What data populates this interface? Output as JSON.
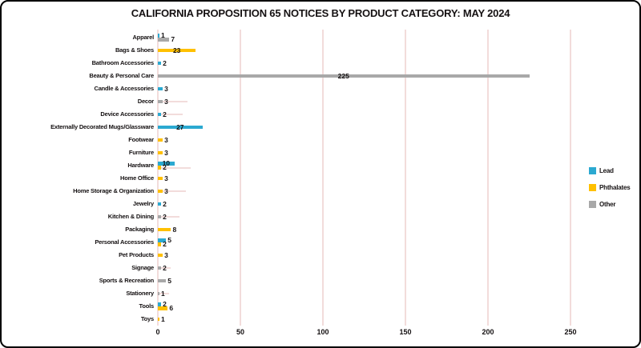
{
  "title": "CALIFORNIA PROPOSITION 65 NOTICES BY PRODUCT CATEGORY: MAY 2024",
  "colors": {
    "lead": "#2BA9D1",
    "phthalates": "#FFC000",
    "other": "#A8A8A8",
    "gridline": "#F2DCDB",
    "marker_line": "#F2DCDB",
    "text": "#151112",
    "background": "#FFFFFF",
    "frame_border": "#000000"
  },
  "legend": {
    "position": "right",
    "items": [
      {
        "key": "lead",
        "label": "Lead"
      },
      {
        "key": "phthalates",
        "label": "Phthalates"
      },
      {
        "key": "other",
        "label": "Other"
      }
    ]
  },
  "chart_data": {
    "type": "bar",
    "orientation": "horizontal",
    "title": "CALIFORNIA PROPOSITION 65 NOTICES BY PRODUCT CATEGORY: MAY 2024",
    "xlabel": "",
    "ylabel": "",
    "xlim": [
      0,
      250
    ],
    "xticks": [
      0,
      50,
      100,
      150,
      200,
      250
    ],
    "grid": true,
    "categories": [
      "Apparel",
      "Bags & Shoes",
      "Bathroom Accessories",
      "Beauty & Personal Care",
      "Candle & Accessories",
      "Decor",
      "Device Accessories",
      "Externally Decorated Mugs/Glassware",
      "Footwear",
      "Furniture",
      "Hardware",
      "Home Office",
      "Home Storage & Organization",
      "Jewelry",
      "Kitchen & Dining",
      "Packaging",
      "Personal Accessories",
      "Pet Products",
      "Signage",
      "Sports & Recreation",
      "Stationery",
      "Tools",
      "Toys"
    ],
    "series": [
      {
        "name": "Lead",
        "color_key": "lead",
        "values": [
          1,
          0,
          2,
          0,
          3,
          0,
          2,
          27,
          0,
          0,
          10,
          0,
          0,
          2,
          0,
          0,
          5,
          0,
          0,
          0,
          0,
          2,
          0
        ]
      },
      {
        "name": "Phthalates",
        "color_key": "phthalates",
        "values": [
          0,
          23,
          0,
          0,
          0,
          0,
          0,
          0,
          3,
          3,
          2,
          3,
          3,
          0,
          0,
          8,
          2,
          3,
          0,
          0,
          0,
          6,
          1
        ]
      },
      {
        "name": "Other",
        "color_key": "other",
        "values": [
          7,
          0,
          0,
          225,
          0,
          3,
          0,
          0,
          0,
          0,
          0,
          0,
          0,
          0,
          2,
          0,
          0,
          0,
          2,
          5,
          1,
          0,
          0
        ]
      }
    ],
    "marker_lines": [
      0,
      0,
      0,
      0,
      0,
      18,
      15,
      0,
      0,
      0,
      20,
      0,
      17,
      0,
      13,
      0,
      0,
      0,
      8,
      0,
      7,
      0,
      0
    ]
  }
}
